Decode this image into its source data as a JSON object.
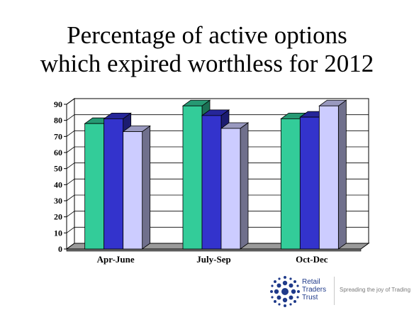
{
  "title": {
    "line1": "Percentage of active options",
    "line2": "which expired worthless for 2012"
  },
  "chart_data": {
    "type": "bar",
    "title": "Percentage of active options which expired worthless for 2012",
    "xlabel": "",
    "ylabel": "",
    "categories": [
      "Apr-June",
      "July-Sep",
      "Oct-Dec"
    ],
    "series": [
      {
        "values": [
          78,
          89,
          81
        ],
        "color": "#33cc99"
      },
      {
        "values": [
          81,
          83,
          82
        ],
        "color": "#3333cc"
      },
      {
        "values": [
          73,
          75,
          89
        ],
        "color": "#ccccff"
      }
    ],
    "ylim": [
      0,
      90
    ],
    "yticks": [
      0,
      10,
      20,
      30,
      40,
      50,
      60,
      70,
      80,
      90
    ],
    "grid": true,
    "style": "3d"
  },
  "logo": {
    "line1": "Retail",
    "line2": "Traders",
    "line3": "Trust",
    "tagline": "Spreading the joy of Trading"
  }
}
